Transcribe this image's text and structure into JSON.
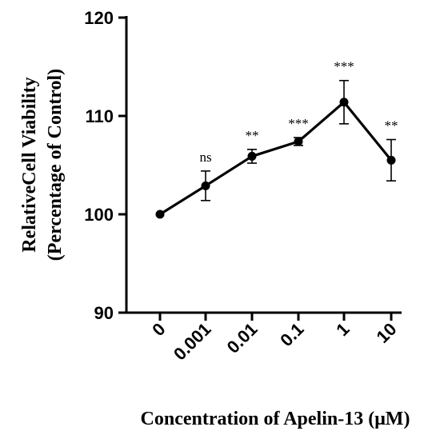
{
  "chart_data": {
    "type": "line",
    "title": "",
    "xlabel": "Concentration of Apelin-13 (μM)",
    "ylabel_lines": [
      "RelativeCell Viability",
      "(Percentage of Control)"
    ],
    "ylim": [
      90,
      120
    ],
    "yticks": [
      90,
      100,
      110,
      120
    ],
    "categories": [
      "0",
      "0.001",
      "0.01",
      "0.1",
      "1",
      "10"
    ],
    "series": [
      {
        "values": [
          100.0,
          102.9,
          105.9,
          107.4,
          111.4,
          105.5
        ],
        "errors": [
          0,
          1.5,
          0.7,
          0.4,
          2.2,
          2.1
        ],
        "significance": [
          "",
          "ns",
          "**",
          "***",
          "***",
          "**"
        ]
      }
    ],
    "grid": false,
    "legend": "none"
  }
}
